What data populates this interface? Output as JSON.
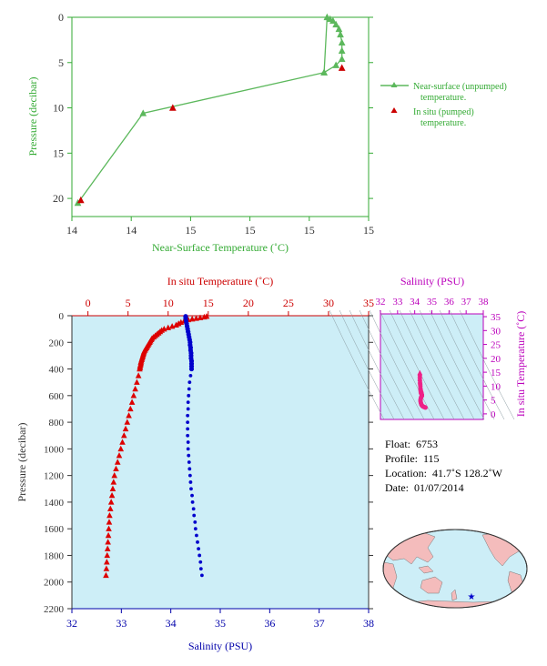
{
  "chart_data": [
    {
      "id": "near_surface",
      "type": "line",
      "xlabel": "Near-Surface Temperature (˚C)",
      "ylabel": "Pressure (decibar)",
      "x_ticks": [
        "14",
        "14",
        "15",
        "15",
        "15",
        "15"
      ],
      "y_ticks": [
        "0",
        "5",
        "10",
        "15",
        "20"
      ],
      "xlim": [
        14.0,
        15.0
      ],
      "ylim": [
        0,
        22
      ],
      "y_inverted": true,
      "series": [
        {
          "name": "Near-surface (unpumped) temperature.",
          "marker": "triangle-line",
          "color": "#5cb85c",
          "points": [
            [
              14.02,
              20.5
            ],
            [
              14.24,
              10.6
            ],
            [
              14.85,
              6.1
            ],
            [
              14.86,
              0.0
            ],
            [
              14.87,
              0.2
            ],
            [
              14.88,
              0.4
            ],
            [
              14.89,
              0.8
            ],
            [
              14.9,
              1.3
            ],
            [
              14.905,
              1.9
            ],
            [
              14.91,
              2.8
            ],
            [
              14.91,
              3.7
            ],
            [
              14.91,
              4.6
            ],
            [
              14.89,
              5.3
            ],
            [
              14.85,
              6.1
            ]
          ]
        },
        {
          "name": "In situ (pumped) temperature.",
          "marker": "triangle",
          "color": "#cc0000",
          "points": [
            [
              14.03,
              20.2
            ],
            [
              14.34,
              10.0
            ],
            [
              14.91,
              5.6
            ]
          ]
        }
      ],
      "legend": [
        {
          "line1": "Near-surface (unpumped)",
          "line2": "temperature."
        },
        {
          "line1": "In situ (pumped)",
          "line2": "temperature."
        }
      ]
    },
    {
      "id": "profile",
      "type": "scatter",
      "title_top": "In situ Temperature (˚C)",
      "xlabel_bottom": "Salinity (PSU)",
      "ylabel": "Pressure (decibar)",
      "temp_ticks": [
        "0",
        "5",
        "10",
        "15",
        "20",
        "25",
        "30",
        "35"
      ],
      "sal_ticks": [
        "32",
        "33",
        "34",
        "35",
        "36",
        "37",
        "38"
      ],
      "pres_ticks": [
        "0",
        "200",
        "400",
        "600",
        "800",
        "1000",
        "1200",
        "1400",
        "1600",
        "1800",
        "2000",
        "2200"
      ],
      "temp_lim": [
        -2,
        35
      ],
      "sal_lim": [
        32,
        38
      ],
      "pres_lim": [
        0,
        2200
      ],
      "temperature": {
        "color": "#dd0000",
        "pressure": [
          5,
          10,
          15,
          20,
          25,
          30,
          40,
          50,
          60,
          70,
          80,
          90,
          100,
          110,
          120,
          130,
          140,
          150,
          160,
          170,
          180,
          190,
          200,
          210,
          220,
          230,
          240,
          250,
          260,
          270,
          280,
          290,
          300,
          310,
          320,
          330,
          340,
          350,
          360,
          370,
          380,
          390,
          400,
          450,
          500,
          550,
          600,
          650,
          700,
          750,
          800,
          850,
          900,
          950,
          1000,
          1050,
          1100,
          1150,
          1200,
          1250,
          1300,
          1350,
          1400,
          1450,
          1500,
          1550,
          1600,
          1650,
          1700,
          1750,
          1800,
          1850,
          1900,
          1950
        ],
        "values": [
          14.8,
          14.5,
          14.0,
          13.5,
          13.0,
          12.5,
          12.0,
          11.6,
          11.3,
          11.0,
          10.5,
          10.0,
          9.5,
          9.2,
          9.0,
          8.8,
          8.6,
          8.4,
          8.2,
          8.0,
          7.9,
          7.8,
          7.7,
          7.6,
          7.5,
          7.4,
          7.3,
          7.2,
          7.1,
          7.0,
          6.95,
          6.9,
          6.85,
          6.8,
          6.75,
          6.7,
          6.65,
          6.6,
          6.6,
          6.55,
          6.5,
          6.5,
          6.45,
          6.3,
          6.1,
          5.9,
          5.7,
          5.5,
          5.3,
          5.1,
          4.9,
          4.7,
          4.5,
          4.3,
          4.1,
          3.9,
          3.7,
          3.5,
          3.3,
          3.2,
          3.1,
          3.0,
          2.9,
          2.8,
          2.7,
          2.65,
          2.6,
          2.55,
          2.5,
          2.45,
          2.4,
          2.35,
          2.3,
          2.25
        ]
      },
      "salinity": {
        "color": "#0000cc",
        "pressure": [
          5,
          20,
          40,
          60,
          80,
          100,
          120,
          140,
          160,
          180,
          200,
          220,
          240,
          260,
          280,
          300,
          320,
          340,
          360,
          380,
          400,
          450,
          500,
          550,
          600,
          650,
          700,
          750,
          800,
          850,
          900,
          950,
          1000,
          1050,
          1100,
          1150,
          1200,
          1250,
          1300,
          1350,
          1400,
          1450,
          1500,
          1550,
          1600,
          1650,
          1700,
          1750,
          1800,
          1850,
          1900,
          1950
        ],
        "values": [
          34.3,
          34.3,
          34.31,
          34.32,
          34.33,
          34.34,
          34.35,
          34.36,
          34.37,
          34.38,
          34.39,
          34.39,
          34.4,
          34.4,
          34.41,
          34.41,
          34.41,
          34.42,
          34.42,
          34.42,
          34.42,
          34.4,
          34.38,
          34.37,
          34.36,
          34.35,
          34.35,
          34.34,
          34.34,
          34.34,
          34.34,
          34.35,
          34.35,
          34.36,
          34.37,
          34.38,
          34.39,
          34.4,
          34.41,
          34.43,
          34.44,
          34.46,
          34.47,
          34.49,
          34.5,
          34.52,
          34.54,
          34.56,
          34.58,
          34.6,
          34.61,
          34.63
        ]
      }
    },
    {
      "id": "ts_diagram",
      "type": "scatter",
      "title": "Salinity (PSU)",
      "ylabel": "In situ Temperature (˚C)",
      "sal_ticks": [
        "32",
        "33",
        "34",
        "35",
        "36",
        "37",
        "38"
      ],
      "temp_ticks": [
        "0",
        "5",
        "10",
        "15",
        "20",
        "25",
        "30",
        "35"
      ],
      "sal_lim": [
        32,
        38
      ],
      "temp_lim": [
        -2,
        36
      ],
      "color": "#ee2288"
    }
  ],
  "float_info": {
    "float_label": "Float:",
    "float_value": "6753",
    "profile_label": "Profile:",
    "profile_value": "115",
    "location_label": "Location:",
    "location_value": "41.7˚S  128.2˚W",
    "date_label": "Date:",
    "date_value": "01/07/2014"
  },
  "colors": {
    "green": "#33aa33",
    "green_line": "#5cb85c",
    "red": "#cc0000",
    "blue": "#0000aa",
    "magenta": "#bb00bb",
    "plot_bg": "#cdeef7",
    "axis_dark": "#333333",
    "land": "#f4bcbc",
    "ocean": "#cdeef7"
  },
  "map": {
    "marker": "star",
    "marker_lon": -128.2,
    "marker_lat": -41.7
  }
}
